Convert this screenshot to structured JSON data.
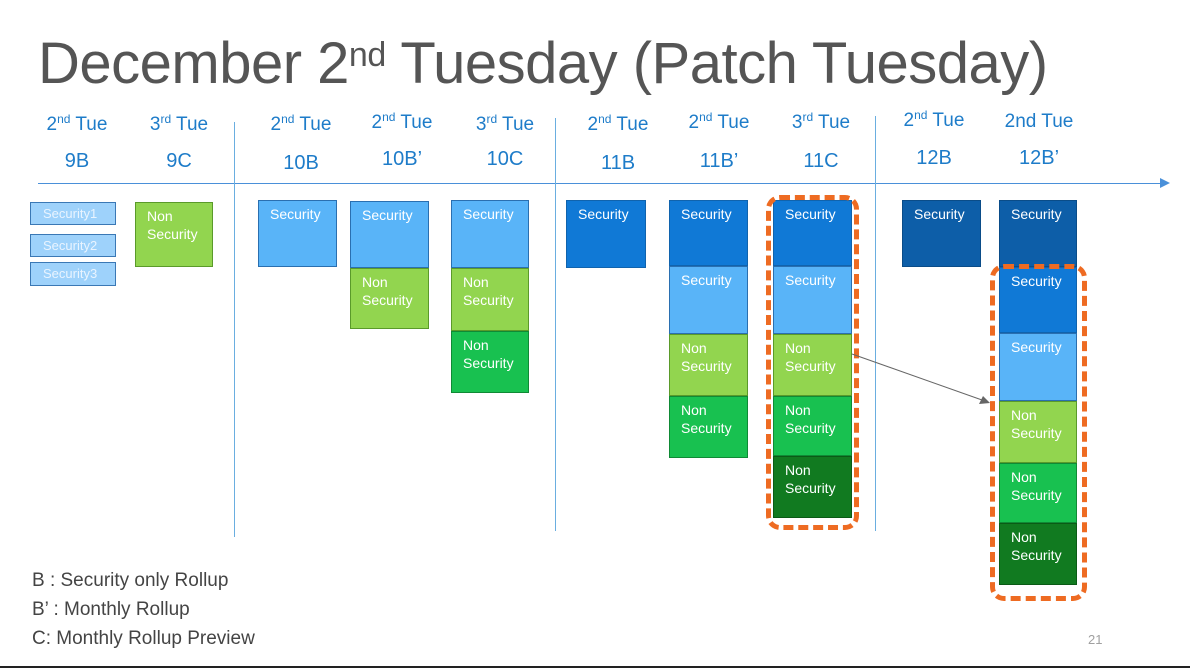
{
  "title": {
    "main": "December 2",
    "sup": "nd",
    "rest": " Tuesday (Patch Tuesday)"
  },
  "columns": [
    {
      "id": "9B",
      "tue_num": "2",
      "tue_sup": "nd",
      "tue_word": " Tue",
      "code": "9B"
    },
    {
      "id": "9C",
      "tue_num": "3",
      "tue_sup": "rd",
      "tue_word": "  Tue",
      "code": "9C"
    },
    {
      "id": "10B",
      "tue_num": "2",
      "tue_sup": "nd",
      "tue_word": " Tue",
      "code": "10B"
    },
    {
      "id": "10Bp",
      "tue_num": "2",
      "tue_sup": "nd",
      "tue_word": " Tue",
      "code": "10B’"
    },
    {
      "id": "10C",
      "tue_num": "3",
      "tue_sup": "rd",
      "tue_word": " Tue",
      "code": "10C"
    },
    {
      "id": "11B",
      "tue_num": "2",
      "tue_sup": "nd",
      "tue_word": " Tue",
      "code": "11B"
    },
    {
      "id": "11Bp",
      "tue_num": "2",
      "tue_sup": "nd",
      "tue_word": " Tue",
      "code": "11B’"
    },
    {
      "id": "11C",
      "tue_num": "3",
      "tue_sup": "rd",
      "tue_word": " Tue",
      "code": "11C"
    },
    {
      "id": "12B",
      "tue_num": "2",
      "tue_sup": "nd",
      "tue_word": " Tue",
      "code": "12B"
    },
    {
      "id": "12Bp",
      "tue_num": "",
      "tue_sup": "",
      "tue_word": "2nd Tue",
      "code": "12B’"
    }
  ],
  "boxes": {
    "sec1": "Security1",
    "sec2": "Security2",
    "sec3": "Security3",
    "security": "Security",
    "nonsec_line1": "Non",
    "nonsec_line2": "Security"
  },
  "legend": {
    "b": "B : Security only Rollup",
    "bp": "B’ : Monthly Rollup",
    "c": "C:  Monthly Rollup Preview"
  },
  "page_number": "21",
  "colors": {
    "accent_blue": "#1e7cc9",
    "highlight_orange": "#ee6b22",
    "title_gray": "#555555"
  }
}
